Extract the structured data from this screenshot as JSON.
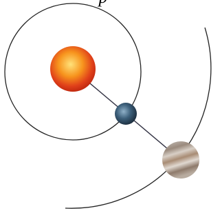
{
  "title": "p"
}
